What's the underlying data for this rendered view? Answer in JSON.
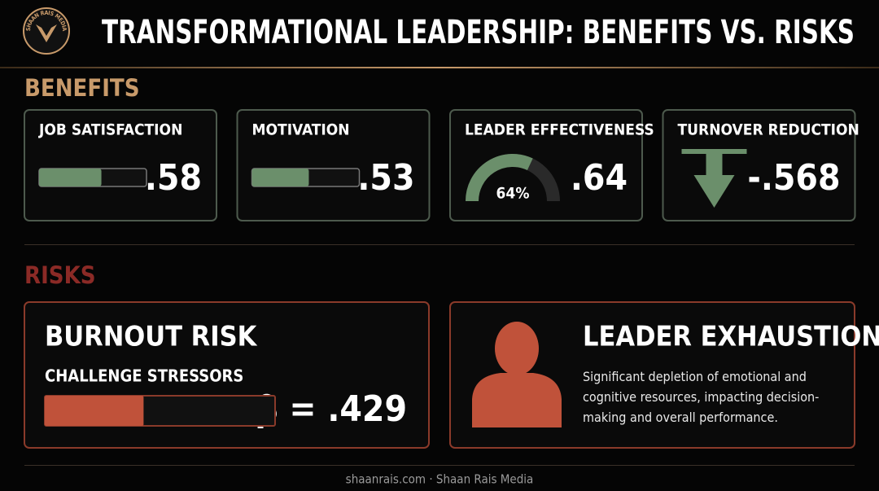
{
  "logo": "SHAAN RAIS MEDIA",
  "title": "TRANSFORMATIONAL LEADERSHIP: BENEFITS VS. RISKS",
  "benefits": {
    "heading": "BENEFITS",
    "cards": [
      {
        "title": "JOB SATISFACTION",
        "display": "bar",
        "value": 0.58,
        "value_label": ".58"
      },
      {
        "title": "MOTIVATION",
        "display": "bar",
        "value": 0.53,
        "value_label": ".53"
      },
      {
        "title": "LEADER EFFECTIVENESS",
        "display": "gauge",
        "value": 0.64,
        "value_label": ".64",
        "gauge_label": "64%"
      },
      {
        "title": "TURNOVER REDUCTION",
        "display": "arrow",
        "value": -0.568,
        "value_label": "-.568"
      }
    ]
  },
  "risks": {
    "heading": "RISKS",
    "burnout": {
      "title": "BURNOUT RISK",
      "subtitle": "CHALLENGE STRESSORS",
      "value": 0.429,
      "value_label": "β = .429"
    },
    "exhaustion": {
      "title": "LEADER EXHAUSTION",
      "description": "Significant depletion of emotional and cognitive resources, impacting decision-making and overall performance."
    }
  },
  "footer": "shaanrais.com · Shaan Rais Media"
}
